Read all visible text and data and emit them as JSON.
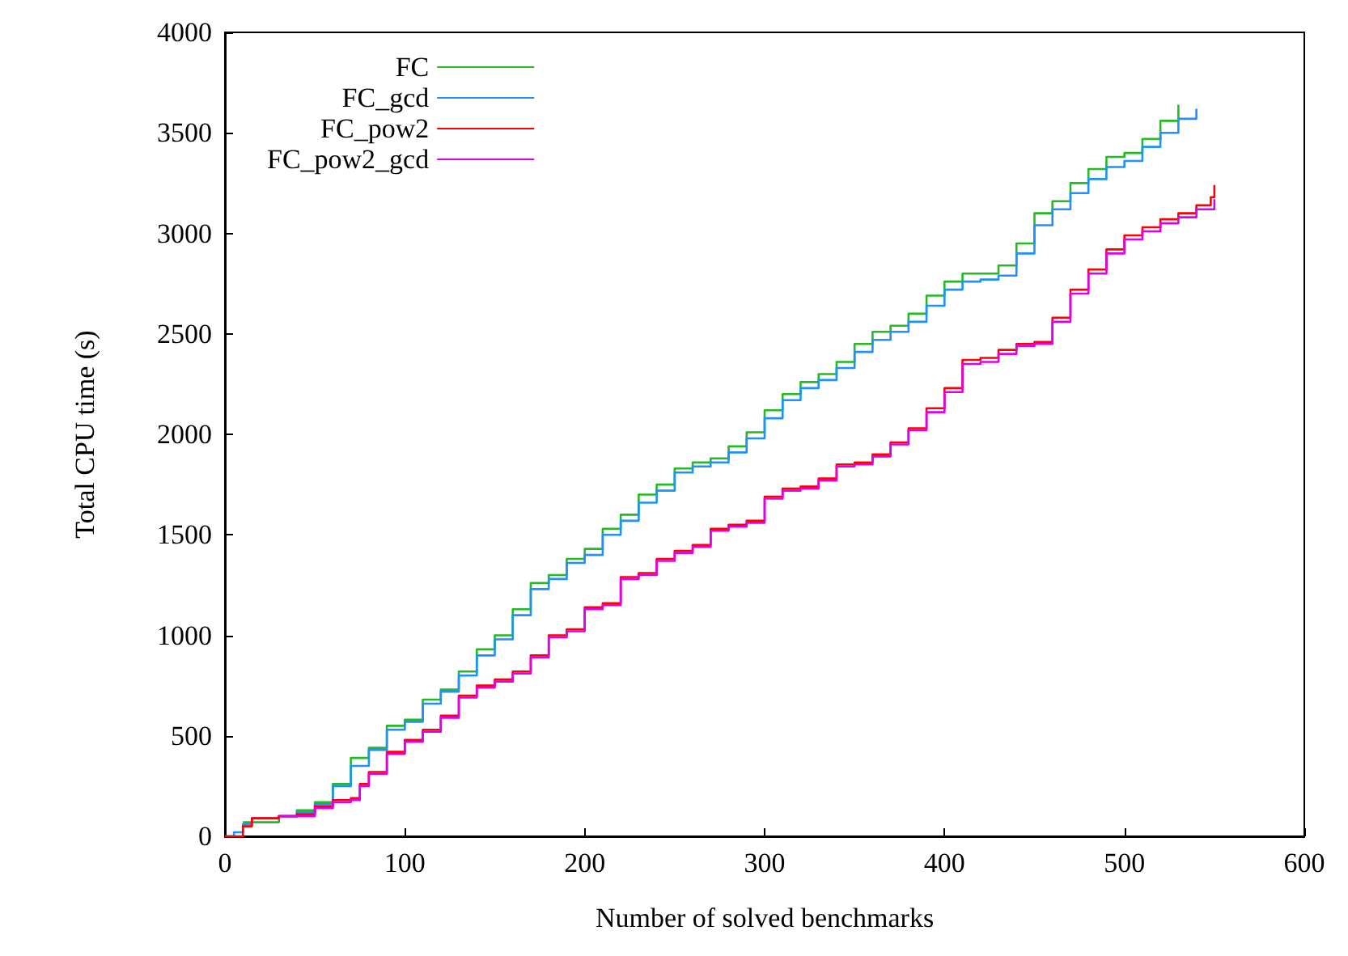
{
  "chart_data": {
    "type": "step",
    "xlabel": "Number of solved benchmarks",
    "ylabel": "Total CPU time (s)",
    "xlim": [
      0,
      600
    ],
    "xticks": [
      0,
      100,
      200,
      300,
      400,
      500,
      600
    ],
    "ylim": [
      0,
      4000
    ],
    "yticks": [
      0,
      500,
      1000,
      1500,
      2000,
      2500,
      3000,
      3500,
      4000
    ],
    "grid": false,
    "legend": "top left",
    "marker": "none",
    "line_style": "solid",
    "x": [
      10,
      30,
      40,
      50,
      60,
      70,
      80,
      90,
      100,
      110,
      120,
      130,
      140,
      150,
      160,
      170,
      180,
      190,
      200,
      210,
      220,
      230,
      240,
      250,
      260,
      270,
      280,
      290,
      300,
      310,
      320,
      330,
      340,
      350,
      360,
      370,
      380,
      390,
      400,
      410,
      420,
      430,
      440,
      450,
      460,
      470,
      480,
      490,
      500,
      510,
      520,
      530
    ],
    "series": [
      {
        "name": "FC",
        "color": "#22bb22",
        "values": [
          70,
          100,
          130,
          170,
          260,
          390,
          440,
          550,
          580,
          680,
          730,
          820,
          930,
          1000,
          1130,
          1260,
          1300,
          1380,
          1430,
          1530,
          1600,
          1700,
          1750,
          1830,
          1860,
          1880,
          1940,
          2010,
          2120,
          2200,
          2260,
          2300,
          2360,
          2450,
          2510,
          2540,
          2600,
          2690,
          2760,
          2800,
          2800,
          2840,
          2950,
          3100,
          3160,
          3250,
          3320,
          3380,
          3400,
          3470,
          3560,
          3640
        ]
      },
      {
        "name": "FC_gcd",
        "color": "#1e90ff",
        "x": [
          0,
          5,
          10,
          15,
          30,
          40,
          50,
          60,
          70,
          80,
          90,
          100,
          110,
          120,
          130,
          140,
          150,
          160,
          170,
          180,
          190,
          200,
          210,
          220,
          230,
          240,
          250,
          260,
          270,
          280,
          290,
          300,
          310,
          320,
          330,
          340,
          350,
          360,
          370,
          380,
          390,
          400,
          410,
          420,
          430,
          440,
          450,
          460,
          470,
          480,
          490,
          500,
          510,
          520,
          530,
          540
        ],
        "values": [
          0,
          20,
          60,
          90,
          100,
          120,
          160,
          250,
          350,
          430,
          530,
          570,
          660,
          720,
          800,
          900,
          980,
          1100,
          1230,
          1280,
          1360,
          1400,
          1500,
          1570,
          1660,
          1720,
          1810,
          1840,
          1860,
          1910,
          1980,
          2080,
          2170,
          2230,
          2270,
          2330,
          2410,
          2470,
          2510,
          2560,
          2640,
          2720,
          2760,
          2770,
          2790,
          2900,
          3040,
          3120,
          3200,
          3270,
          3330,
          3360,
          3430,
          3500,
          3570,
          3620
        ]
      },
      {
        "name": "FC_pow2",
        "color": "#ff0000",
        "x": [
          0,
          10,
          15,
          30,
          40,
          50,
          60,
          70,
          75,
          80,
          90,
          100,
          110,
          120,
          130,
          140,
          150,
          160,
          170,
          180,
          190,
          200,
          210,
          220,
          230,
          240,
          250,
          260,
          270,
          280,
          290,
          300,
          310,
          320,
          330,
          340,
          350,
          360,
          370,
          380,
          390,
          400,
          410,
          420,
          430,
          440,
          450,
          460,
          470,
          480,
          490,
          500,
          510,
          520,
          530,
          540,
          548,
          550
        ],
        "values": [
          0,
          50,
          90,
          100,
          110,
          150,
          180,
          190,
          260,
          320,
          420,
          480,
          530,
          600,
          700,
          750,
          780,
          820,
          900,
          1000,
          1030,
          1140,
          1160,
          1290,
          1310,
          1380,
          1420,
          1450,
          1530,
          1550,
          1570,
          1690,
          1730,
          1740,
          1780,
          1850,
          1860,
          1900,
          1960,
          2030,
          2130,
          2230,
          2370,
          2380,
          2420,
          2450,
          2460,
          2580,
          2720,
          2820,
          2920,
          2990,
          3030,
          3070,
          3100,
          3140,
          3180,
          3240
        ]
      },
      {
        "name": "FC_pow2_gcd",
        "color": "#dd00ee",
        "x": [
          30,
          40,
          50,
          60,
          70,
          75,
          80,
          90,
          100,
          110,
          120,
          130,
          140,
          150,
          160,
          170,
          180,
          190,
          200,
          210,
          220,
          230,
          240,
          250,
          260,
          270,
          280,
          290,
          300,
          310,
          320,
          330,
          340,
          350,
          360,
          370,
          380,
          390,
          400,
          410,
          420,
          430,
          440,
          450,
          460,
          470,
          480,
          490,
          500,
          510,
          520,
          530,
          540,
          550
        ],
        "values": [
          100,
          100,
          140,
          170,
          180,
          250,
          310,
          410,
          470,
          520,
          590,
          690,
          740,
          770,
          810,
          890,
          990,
          1020,
          1130,
          1150,
          1280,
          1300,
          1370,
          1410,
          1440,
          1520,
          1540,
          1560,
          1680,
          1720,
          1730,
          1770,
          1840,
          1850,
          1890,
          1950,
          2020,
          2110,
          2210,
          2350,
          2360,
          2400,
          2440,
          2450,
          2560,
          2700,
          2800,
          2900,
          2970,
          3010,
          3050,
          3080,
          3120,
          3170
        ]
      }
    ]
  }
}
